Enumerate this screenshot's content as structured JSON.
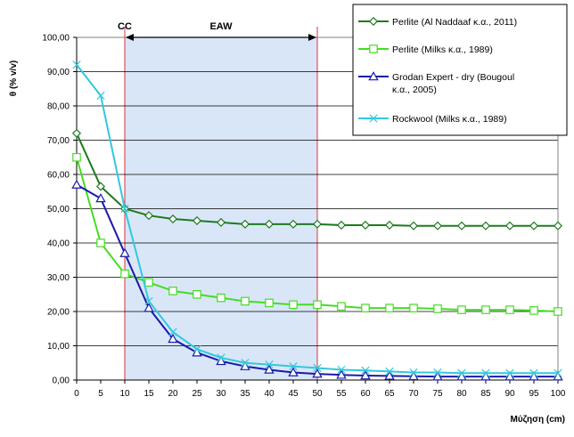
{
  "chart_data": {
    "type": "line",
    "title": "",
    "xlabel": "Μύζηση (cm)",
    "ylabel": "θ (% v/v)",
    "xlim": [
      0,
      100
    ],
    "ylim": [
      0,
      100
    ],
    "grid": "horizontal",
    "legend_position": "top-right",
    "x": [
      0,
      5,
      10,
      15,
      20,
      25,
      30,
      35,
      40,
      45,
      50,
      55,
      60,
      65,
      70,
      75,
      80,
      85,
      90,
      95,
      100
    ],
    "x_tick_labels": [
      "0",
      "5",
      "10",
      "15",
      "20",
      "25",
      "30",
      "35",
      "40",
      "45",
      "50",
      "55",
      "60",
      "65",
      "70",
      "75",
      "80",
      "85",
      "90",
      "95",
      "100"
    ],
    "y_tick_labels": [
      "0,00",
      "10,00",
      "20,00",
      "30,00",
      "40,00",
      "50,00",
      "60,00",
      "70,00",
      "80,00",
      "90,00",
      "100,00"
    ],
    "y_ticks": [
      0,
      10,
      20,
      30,
      40,
      50,
      60,
      70,
      80,
      90,
      100
    ],
    "zones": {
      "cc_label": "CC",
      "eaw_label": "EAW",
      "cc_x": 10,
      "eaw_x_end": 50,
      "fill_color": "#d9e6f8",
      "line_color": "#e0303c"
    },
    "series": [
      {
        "name": "Perlite (Al Naddaaf κ.α., 2011)",
        "legend_lines": [
          "Perlite (Al Naddaaf κ.α., 2011)"
        ],
        "color": "#1e7a1e",
        "marker": "diamond",
        "values": [
          72,
          56.5,
          50,
          48,
          47,
          46.5,
          46,
          45.5,
          45.5,
          45.5,
          45.5,
          45.2,
          45.2,
          45.2,
          45,
          45,
          45,
          45,
          45,
          45,
          45
        ]
      },
      {
        "name": "Perlite (Milks κ.α., 1989)",
        "legend_lines": [
          "Perlite (Milks κ.α., 1989)"
        ],
        "color": "#44dd22",
        "marker": "square",
        "values": [
          65,
          40,
          31,
          28.5,
          26,
          25,
          24,
          23,
          22.5,
          22,
          22,
          21.5,
          21,
          21,
          21,
          20.8,
          20.5,
          20.5,
          20.5,
          20.3,
          20
        ]
      },
      {
        "name": "Grodan Expert - dry (Bougoul κ.α., 2005)",
        "legend_lines": [
          "Grodan Expert - dry (Bougoul",
          "κ.α., 2005)"
        ],
        "color": "#1a1aaa",
        "marker": "triangle",
        "values": [
          57,
          53,
          37,
          21,
          12,
          8,
          5.5,
          4,
          3,
          2.2,
          1.8,
          1.5,
          1.3,
          1.2,
          1.1,
          1,
          1,
          1,
          1,
          1,
          1
        ]
      },
      {
        "name": "Rockwool (Milks κ.α., 1989)",
        "legend_lines": [
          "Rockwool (Milks κ.α., 1989)"
        ],
        "color": "#33c8dd",
        "marker": "x",
        "values": [
          92,
          83,
          50,
          23,
          14,
          9,
          6.5,
          5,
          4.5,
          4,
          3.5,
          3,
          2.8,
          2.5,
          2.2,
          2.2,
          2,
          2,
          2,
          2,
          2
        ]
      }
    ]
  }
}
